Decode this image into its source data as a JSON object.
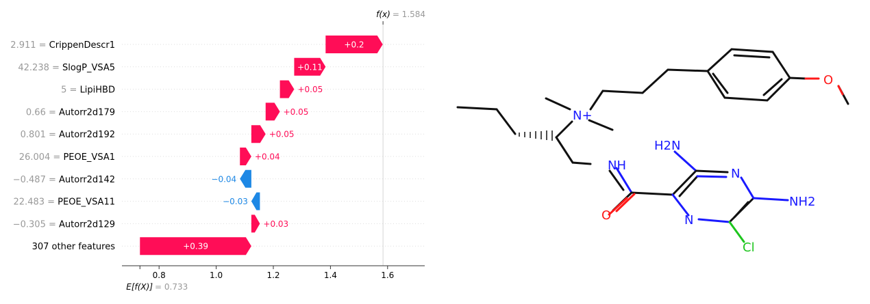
{
  "chart_data": {
    "type": "waterfall",
    "fx_label_prefix": "f(x)",
    "fx_value": "= 1.584",
    "ex_label_prefix": "E[f(X)]",
    "ex_value": "= 0.733",
    "fx": 1.584,
    "ex": 0.733,
    "xlim": [
      0.67,
      1.73
    ],
    "xticks": [
      0.8,
      1.0,
      1.2,
      1.4,
      1.6
    ],
    "xtick_labels": [
      "0.8",
      "1.0",
      "1.2",
      "1.4",
      "1.6"
    ],
    "colors": {
      "positive": "#ff0d57",
      "negative": "#1e88e5"
    },
    "features": [
      {
        "value": "2.911",
        "name": "CrippenDescr1",
        "contribution": 0.2,
        "label": "+0.2"
      },
      {
        "value": "42.238",
        "name": "SlogP_VSA5",
        "contribution": 0.11,
        "label": "+0.11"
      },
      {
        "value": "5",
        "name": "LipiHBD",
        "contribution": 0.05,
        "label": "+0.05"
      },
      {
        "value": "0.66",
        "name": "Autorr2d179",
        "contribution": 0.05,
        "label": "+0.05"
      },
      {
        "value": "0.801",
        "name": "Autorr2d192",
        "contribution": 0.05,
        "label": "+0.05"
      },
      {
        "value": "26.004",
        "name": "PEOE_VSA1",
        "contribution": 0.04,
        "label": "+0.04"
      },
      {
        "value": "−0.487",
        "name": "Autorr2d142",
        "contribution": -0.04,
        "label": "−0.04"
      },
      {
        "value": "22.483",
        "name": "PEOE_VSA11",
        "contribution": -0.03,
        "label": "−0.03"
      },
      {
        "value": "−0.305",
        "name": "Autorr2d129",
        "contribution": 0.03,
        "label": "+0.03"
      },
      {
        "value": "",
        "name": "307 other features",
        "contribution": 0.39,
        "label": "+0.39"
      }
    ]
  },
  "molecule": {
    "labels": [
      "N+",
      "H2N",
      "N",
      "N",
      "NH",
      "NH2",
      "O",
      "N",
      "Cl",
      "O"
    ]
  }
}
